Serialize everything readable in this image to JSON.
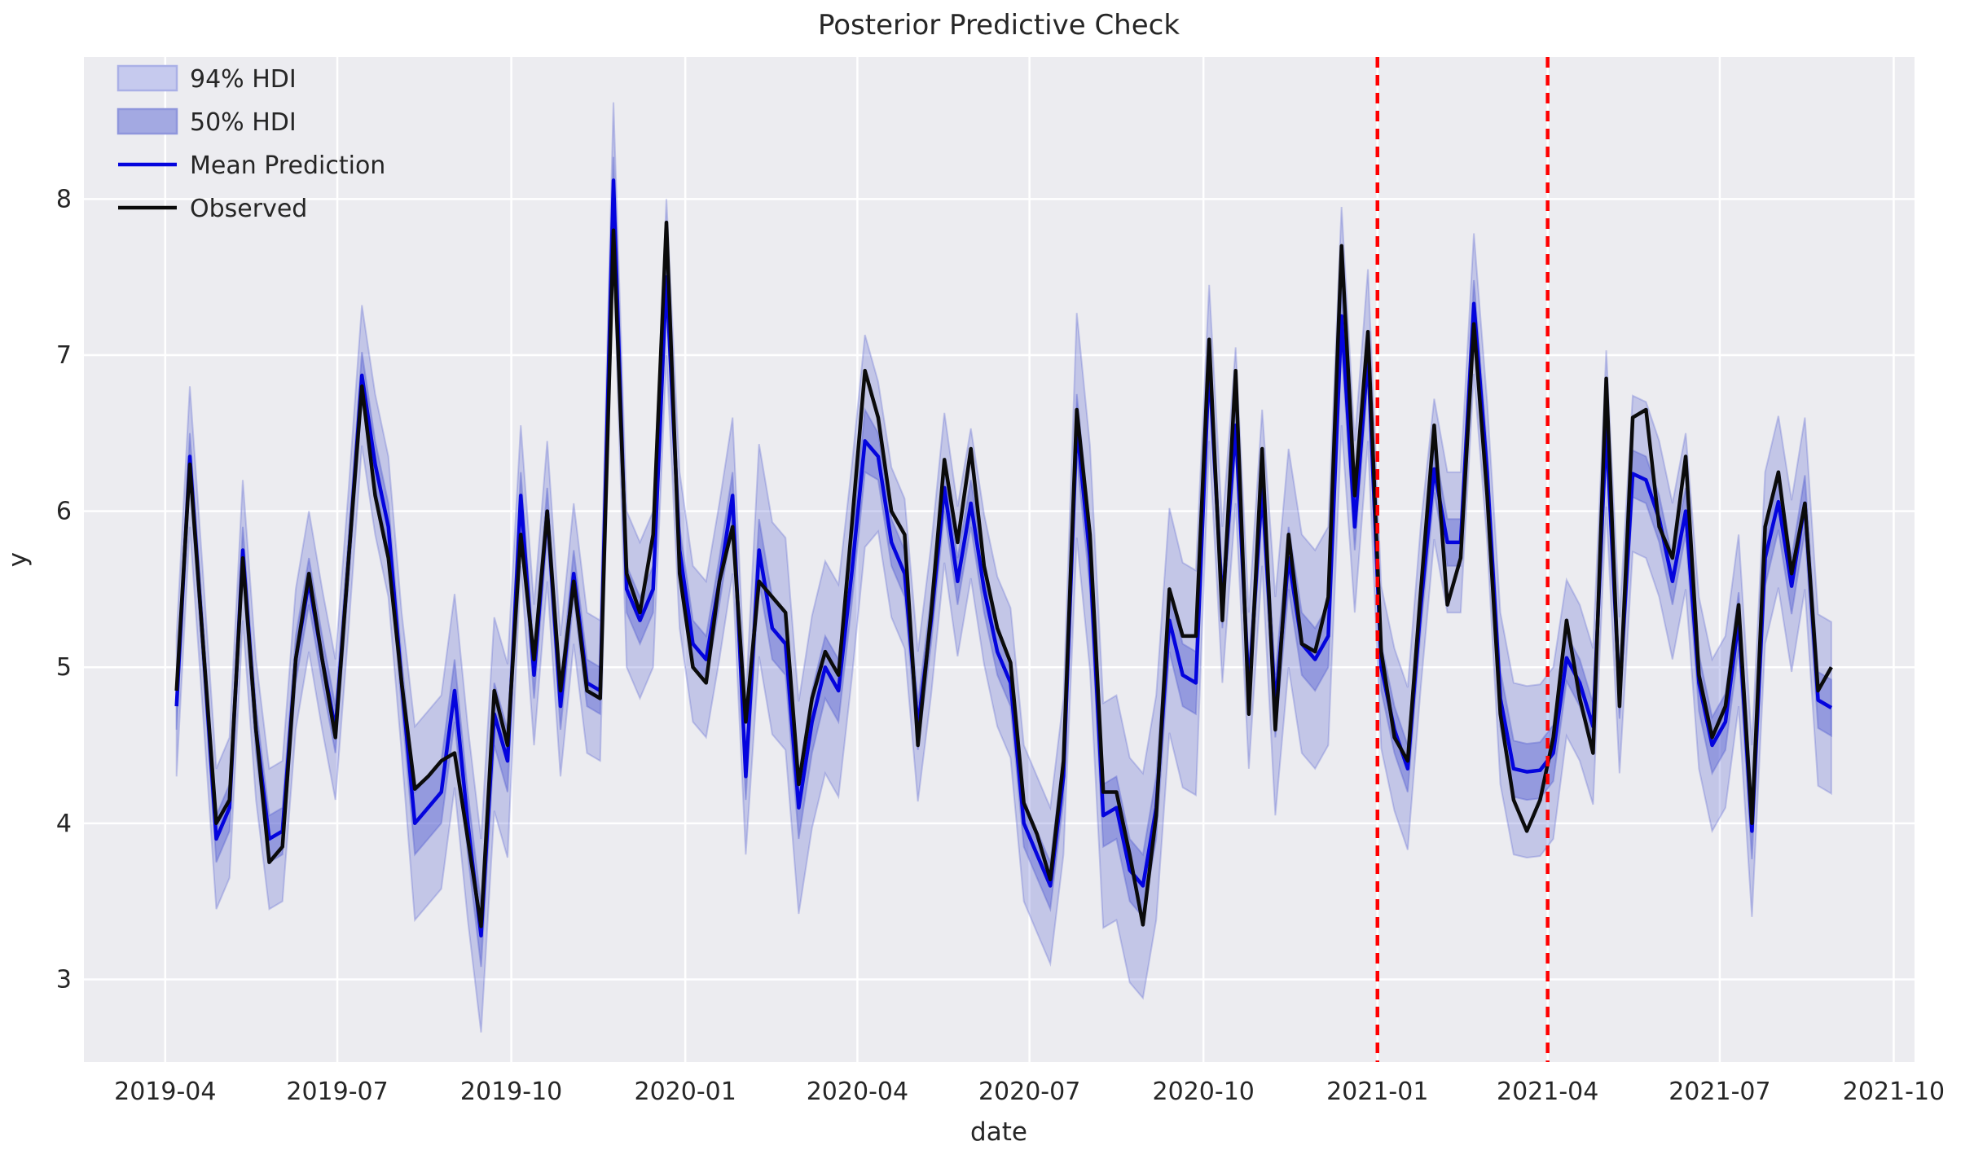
{
  "title": "Posterior Predictive Check",
  "axes": {
    "xlabel": "date",
    "ylabel": "y",
    "x_ticks": [
      {
        "label": "2019-04",
        "date": "2019-04-01"
      },
      {
        "label": "2019-07",
        "date": "2019-07-01"
      },
      {
        "label": "2019-10",
        "date": "2019-10-01"
      },
      {
        "label": "2020-01",
        "date": "2020-01-01"
      },
      {
        "label": "2020-04",
        "date": "2020-04-01"
      },
      {
        "label": "2020-07",
        "date": "2020-07-01"
      },
      {
        "label": "2020-10",
        "date": "2020-10-01"
      },
      {
        "label": "2021-01",
        "date": "2021-01-01"
      },
      {
        "label": "2021-04",
        "date": "2021-04-01"
      },
      {
        "label": "2021-07",
        "date": "2021-07-01"
      },
      {
        "label": "2021-10",
        "date": "2021-10-01"
      }
    ],
    "y_ticks": [
      3,
      4,
      5,
      6,
      7,
      8
    ],
    "xlim": [
      "2019-02-17",
      "2021-10-12"
    ],
    "ylim": [
      2.47,
      8.91
    ],
    "grid": true
  },
  "legend": {
    "position": "upper-left",
    "items": [
      {
        "label": "94% HDI",
        "swatch": "patch",
        "fill": "#c6caee",
        "stroke": "#aab0e6"
      },
      {
        "label": "50% HDI",
        "swatch": "patch",
        "fill": "#a3a9e2",
        "stroke": "#8f96dc"
      },
      {
        "label": "Mean Prediction",
        "swatch": "line",
        "color": "#0404dd"
      },
      {
        "label": "Observed",
        "swatch": "line",
        "color": "#0b0b0b"
      }
    ]
  },
  "colors": {
    "plot_background": "#ececf0",
    "grid": "#ffffff",
    "observed_line": "#0b0b0b",
    "mean_line": "#0404dd",
    "hdi_fill": "#5a64d2",
    "hdi94_opacity": 0.28,
    "hdi50_opacity": 0.45,
    "vline": "#ff0000",
    "text": "#262626"
  },
  "vlines": [
    {
      "name": "split-start",
      "date": "2021-01-01",
      "style": "dashed"
    },
    {
      "name": "split-end",
      "date": "2021-04-01",
      "style": "dashed"
    }
  ],
  "chart_data": {
    "type": "line",
    "title": "Posterior Predictive Check",
    "xlabel": "date",
    "ylabel": "y",
    "frequency": "weekly",
    "start_date": "2019-04-07",
    "n_points": 126,
    "series": [
      {
        "name": "Observed",
        "values": [
          4.85,
          6.3,
          5.15,
          4.0,
          4.15,
          5.7,
          4.6,
          3.75,
          3.85,
          5.05,
          5.6,
          5.05,
          4.55,
          5.7,
          6.8,
          6.1,
          5.7,
          4.9,
          4.22,
          4.3,
          4.4,
          4.45,
          3.9,
          3.34,
          4.85,
          4.5,
          5.85,
          5.05,
          6.0,
          4.85,
          5.55,
          4.85,
          4.8,
          7.8,
          5.6,
          5.35,
          5.85,
          7.85,
          5.6,
          5.0,
          4.9,
          5.55,
          5.9,
          4.65,
          5.55,
          5.45,
          5.35,
          4.25,
          4.8,
          5.1,
          4.95,
          5.9,
          6.9,
          6.6,
          6.0,
          5.85,
          4.5,
          5.35,
          6.33,
          5.8,
          6.4,
          5.65,
          5.25,
          5.03,
          4.13,
          3.93,
          3.64,
          4.4,
          6.65,
          5.85,
          4.2,
          4.2,
          3.8,
          3.35,
          4.05,
          5.5,
          5.2,
          5.2,
          7.1,
          5.3,
          6.9,
          4.7,
          6.4,
          4.6,
          5.85,
          5.15,
          5.1,
          5.45,
          7.7,
          6.1,
          7.15,
          5.1,
          4.55,
          4.4,
          5.5,
          6.55,
          5.4,
          5.7,
          7.2,
          6.1,
          4.7,
          4.15,
          3.95,
          4.15,
          4.55,
          5.3,
          4.8,
          4.45,
          6.85,
          4.75,
          6.6,
          6.65,
          5.9,
          5.7,
          6.35,
          4.95,
          4.55,
          4.75,
          5.4,
          4.0,
          5.9,
          6.25,
          5.6,
          6.05,
          4.85,
          5.0
        ]
      },
      {
        "name": "Mean Prediction",
        "values": [
          4.75,
          6.35,
          5.15,
          3.9,
          4.1,
          5.75,
          4.6,
          3.9,
          3.95,
          5.05,
          5.55,
          5.05,
          4.6,
          5.7,
          6.87,
          6.3,
          5.9,
          4.9,
          4.0,
          4.1,
          4.2,
          4.85,
          4.0,
          3.28,
          4.7,
          4.4,
          6.1,
          4.95,
          6.0,
          4.75,
          5.6,
          4.9,
          4.85,
          8.12,
          5.5,
          5.3,
          5.5,
          7.5,
          5.75,
          5.15,
          5.05,
          5.55,
          6.1,
          4.3,
          5.75,
          5.25,
          5.15,
          4.1,
          4.65,
          5.0,
          4.85,
          5.6,
          6.45,
          6.35,
          5.8,
          5.6,
          4.62,
          5.3,
          6.15,
          5.55,
          6.05,
          5.5,
          5.1,
          4.9,
          4.0,
          3.8,
          3.6,
          4.3,
          6.55,
          5.7,
          4.05,
          4.1,
          3.7,
          3.6,
          4.1,
          5.3,
          4.95,
          4.9,
          6.95,
          5.4,
          6.55,
          4.85,
          6.15,
          4.75,
          5.7,
          5.15,
          5.05,
          5.2,
          7.25,
          5.9,
          7.0,
          5.0,
          4.6,
          4.35,
          5.4,
          6.27,
          5.8,
          5.8,
          7.33,
          6.25,
          4.8,
          4.35,
          4.33,
          4.34,
          4.45,
          5.06,
          4.9,
          4.62,
          6.53,
          4.82,
          6.24,
          6.2,
          5.95,
          5.55,
          6.0,
          4.9,
          4.5,
          4.65,
          5.3,
          3.95,
          5.7,
          6.06,
          5.52,
          6.05,
          4.79,
          4.74
        ]
      }
    ],
    "hdi94_halfwidth_runs": [
      [
        18,
        0.45
      ],
      [
        8,
        0.62
      ],
      [
        7,
        0.45
      ],
      [
        1,
        0.5
      ],
      [
        10,
        0.5
      ],
      [
        9,
        0.68
      ],
      [
        11,
        0.48
      ],
      [
        4,
        0.5
      ],
      [
        10,
        0.72
      ],
      [
        5,
        0.5
      ],
      [
        6,
        0.7
      ],
      [
        2,
        0.55
      ],
      [
        4,
        0.52
      ],
      [
        5,
        0.45
      ],
      [
        5,
        0.55
      ],
      [
        10,
        0.5
      ],
      [
        11,
        0.55
      ]
    ],
    "hdi50_halfwidth_runs": [
      [
        18,
        0.15
      ],
      [
        8,
        0.2
      ],
      [
        18,
        0.15
      ],
      [
        9,
        0.2
      ],
      [
        15,
        0.15
      ],
      [
        10,
        0.2
      ],
      [
        5,
        0.15
      ],
      [
        6,
        0.2
      ],
      [
        11,
        0.15
      ],
      [
        5,
        0.18
      ],
      [
        10,
        0.15
      ],
      [
        11,
        0.18
      ]
    ],
    "legend_entries": [
      "94% HDI",
      "50% HDI",
      "Mean Prediction",
      "Observed"
    ],
    "legend_position": "upper left",
    "annotations": "two red dashed vertical lines at 2021-01-01 and 2021-04-01"
  }
}
